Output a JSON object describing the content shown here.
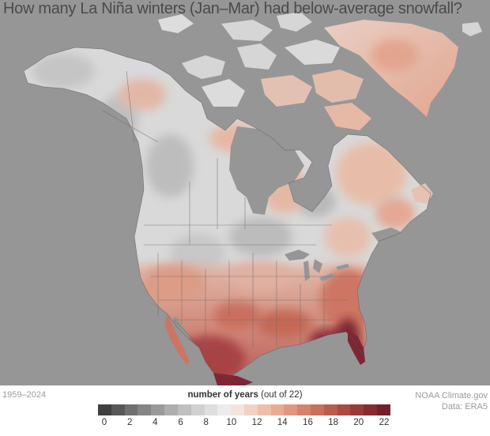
{
  "title": "How many La Niña winters (Jan–Mar) had below-average snowfall?",
  "period": "1959–2024",
  "credit": {
    "line1": "NOAA Climate.gov",
    "line2": "Data: ERA5"
  },
  "legend": {
    "title_bold": "number of years",
    "title_rest": " (out of 22)",
    "ticks": [
      "0",
      "2",
      "4",
      "6",
      "8",
      "10",
      "12",
      "14",
      "16",
      "18",
      "20",
      "22"
    ],
    "colors": [
      "#3f3f3f",
      "#585858",
      "#6f6f6f",
      "#858585",
      "#9a9a9a",
      "#aeaeae",
      "#c0c0c0",
      "#d1d1d1",
      "#dedede",
      "#ececec",
      "#f4e4dc",
      "#f2d2c2",
      "#eebfab",
      "#e8ab94",
      "#df977f",
      "#d4846d",
      "#c7705c",
      "#b95d4e",
      "#aa4a42",
      "#993a38",
      "#862b2f",
      "#722029"
    ]
  },
  "colors": {
    "ocean": "#969696",
    "land_gray": "#d8d8d8",
    "land_light": "#e6e6e6",
    "land_salmon": "#e8b8a4",
    "land_red": "#b8534a",
    "land_darkred": "#822838"
  }
}
